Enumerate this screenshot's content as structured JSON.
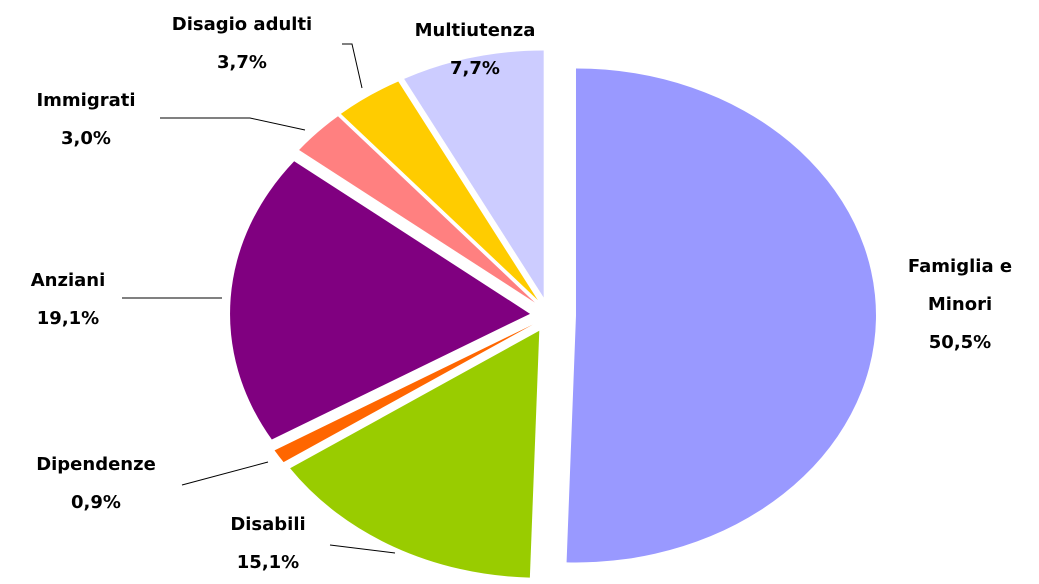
{
  "chart_data": {
    "type": "pie",
    "categories": [
      "Famiglia e Minori",
      "Disabili",
      "Dipendenze",
      "Anziani",
      "Immigrati",
      "Disagio adulti",
      "Multiutenza"
    ],
    "values": [
      50.5,
      15.1,
      0.9,
      19.1,
      3.0,
      3.7,
      7.7
    ],
    "value_labels": [
      "50,5%",
      "15,1%",
      "0,9%",
      "19,1%",
      "3,0%",
      "3,7%",
      "7,7%"
    ],
    "colors": [
      "#9999ff",
      "#99cc00",
      "#ff6600",
      "#800080",
      "#ff8080",
      "#ffcc00",
      "#ccccff"
    ]
  }
}
